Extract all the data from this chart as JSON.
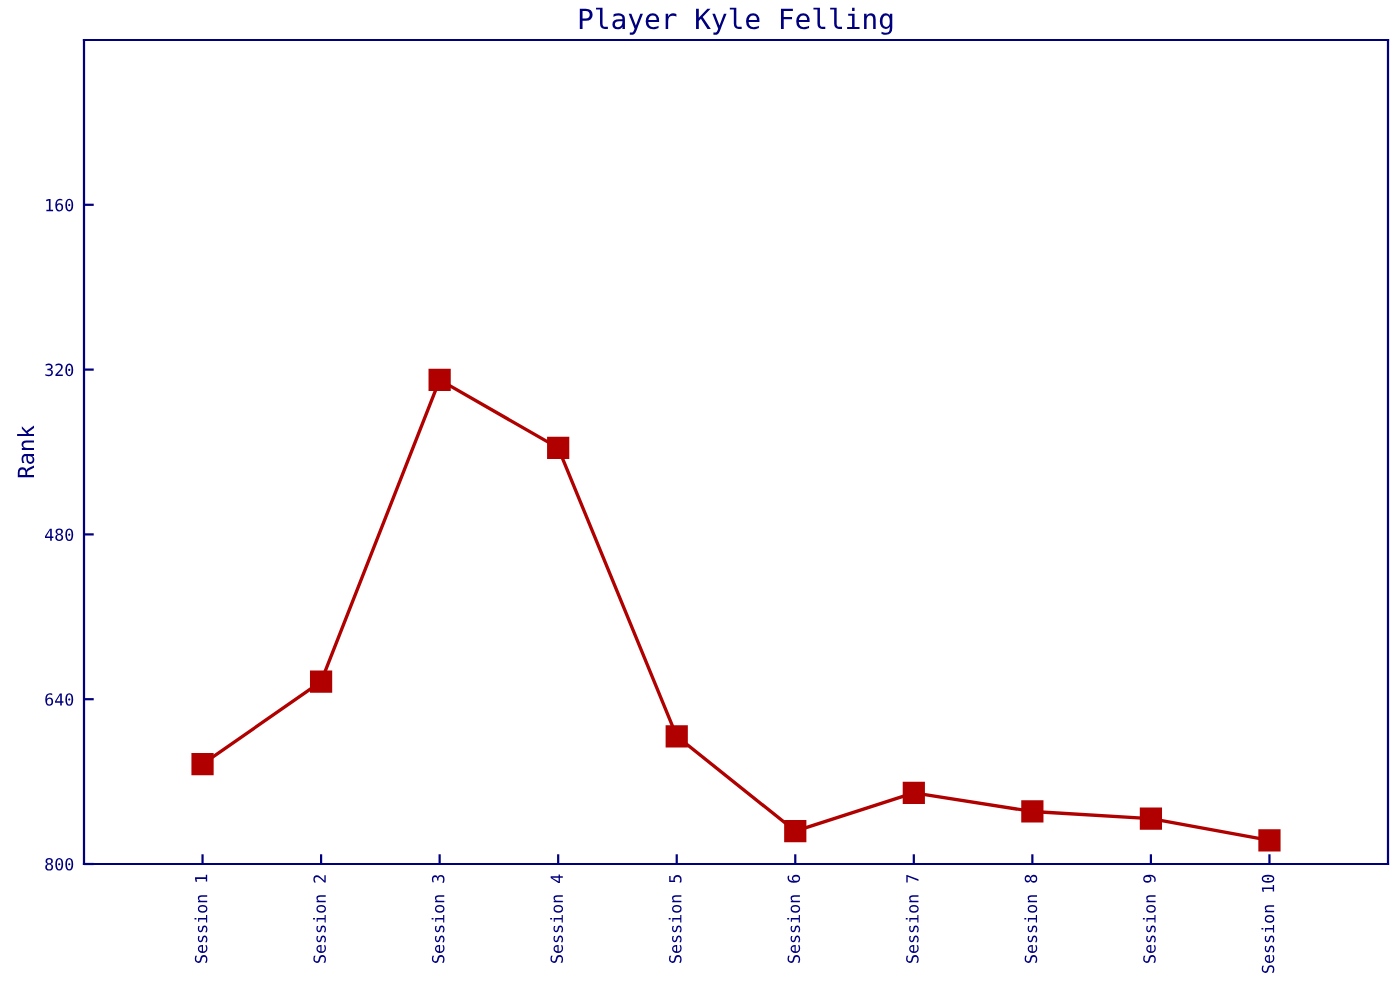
{
  "chart_data": {
    "type": "line",
    "title": "Player Kyle Felling",
    "ylabel": "Rank",
    "categories": [
      "Session 1",
      "Session 2",
      "Session 3",
      "Session 4",
      "Session 5",
      "Session 6",
      "Session 7",
      "Session 8",
      "Session 9",
      "Session 10"
    ],
    "series": [
      {
        "color": "#b00000",
        "values": [
          703,
          623,
          330,
          396,
          676,
          768,
          731,
          749,
          756,
          777
        ]
      }
    ],
    "ylim": [
      800,
      0
    ],
    "yticks": [
      160,
      320,
      480,
      640,
      800
    ],
    "marker": "square",
    "line_style": "solid",
    "grid": false,
    "legend": false
  }
}
